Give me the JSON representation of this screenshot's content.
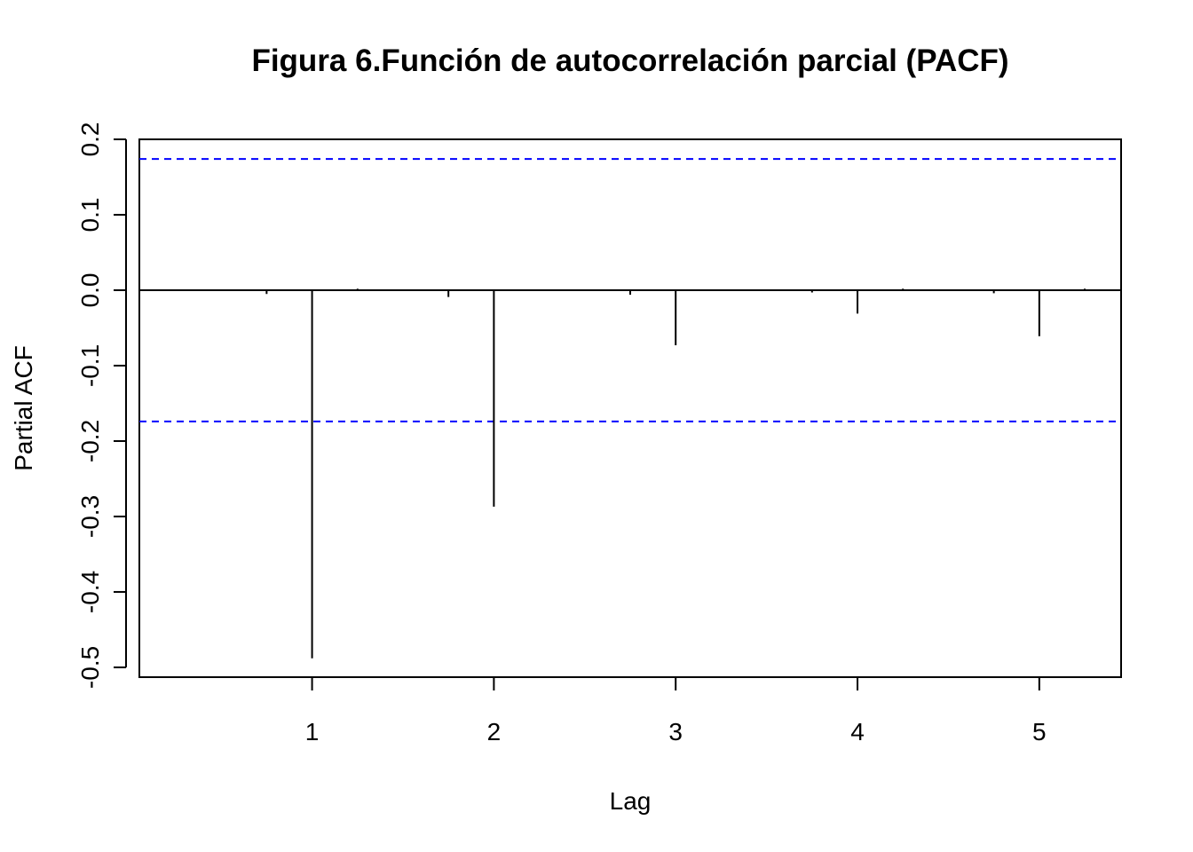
{
  "chart_data": {
    "type": "bar",
    "title": "Figura 6.Función de autocorrelación parcial (PACF)",
    "xlabel": "Lag",
    "ylabel": "Partial ACF",
    "xlim": [
      0.05,
      5.45
    ],
    "ylim": [
      -0.513,
      0.2
    ],
    "x_ticks": [
      1,
      2,
      3,
      4,
      5
    ],
    "x_tick_labels": [
      "1",
      "2",
      "3",
      "4",
      "5"
    ],
    "y_ticks": [
      -0.5,
      -0.4,
      -0.3,
      -0.2,
      -0.1,
      0.0,
      0.1,
      0.2
    ],
    "y_tick_labels": [
      "-0.5",
      "-0.4",
      "-0.3",
      "-0.2",
      "-0.1",
      "0.0",
      "0.1",
      "0.2"
    ],
    "confidence_band": 0.174,
    "confidence_color": "#0000ff",
    "series": [
      {
        "x": [
          0.75,
          1,
          1.25,
          1.75,
          2,
          2.25,
          2.75,
          3,
          3.25,
          3.75,
          4,
          4.25,
          4.75,
          5,
          5.25
        ],
        "values": [
          -0.005,
          -0.488,
          0.002,
          -0.009,
          -0.287,
          0.001,
          -0.006,
          -0.073,
          0.001,
          -0.003,
          -0.031,
          0.002,
          -0.004,
          -0.061,
          0.002
        ]
      }
    ],
    "grid": false,
    "legend": "none"
  }
}
